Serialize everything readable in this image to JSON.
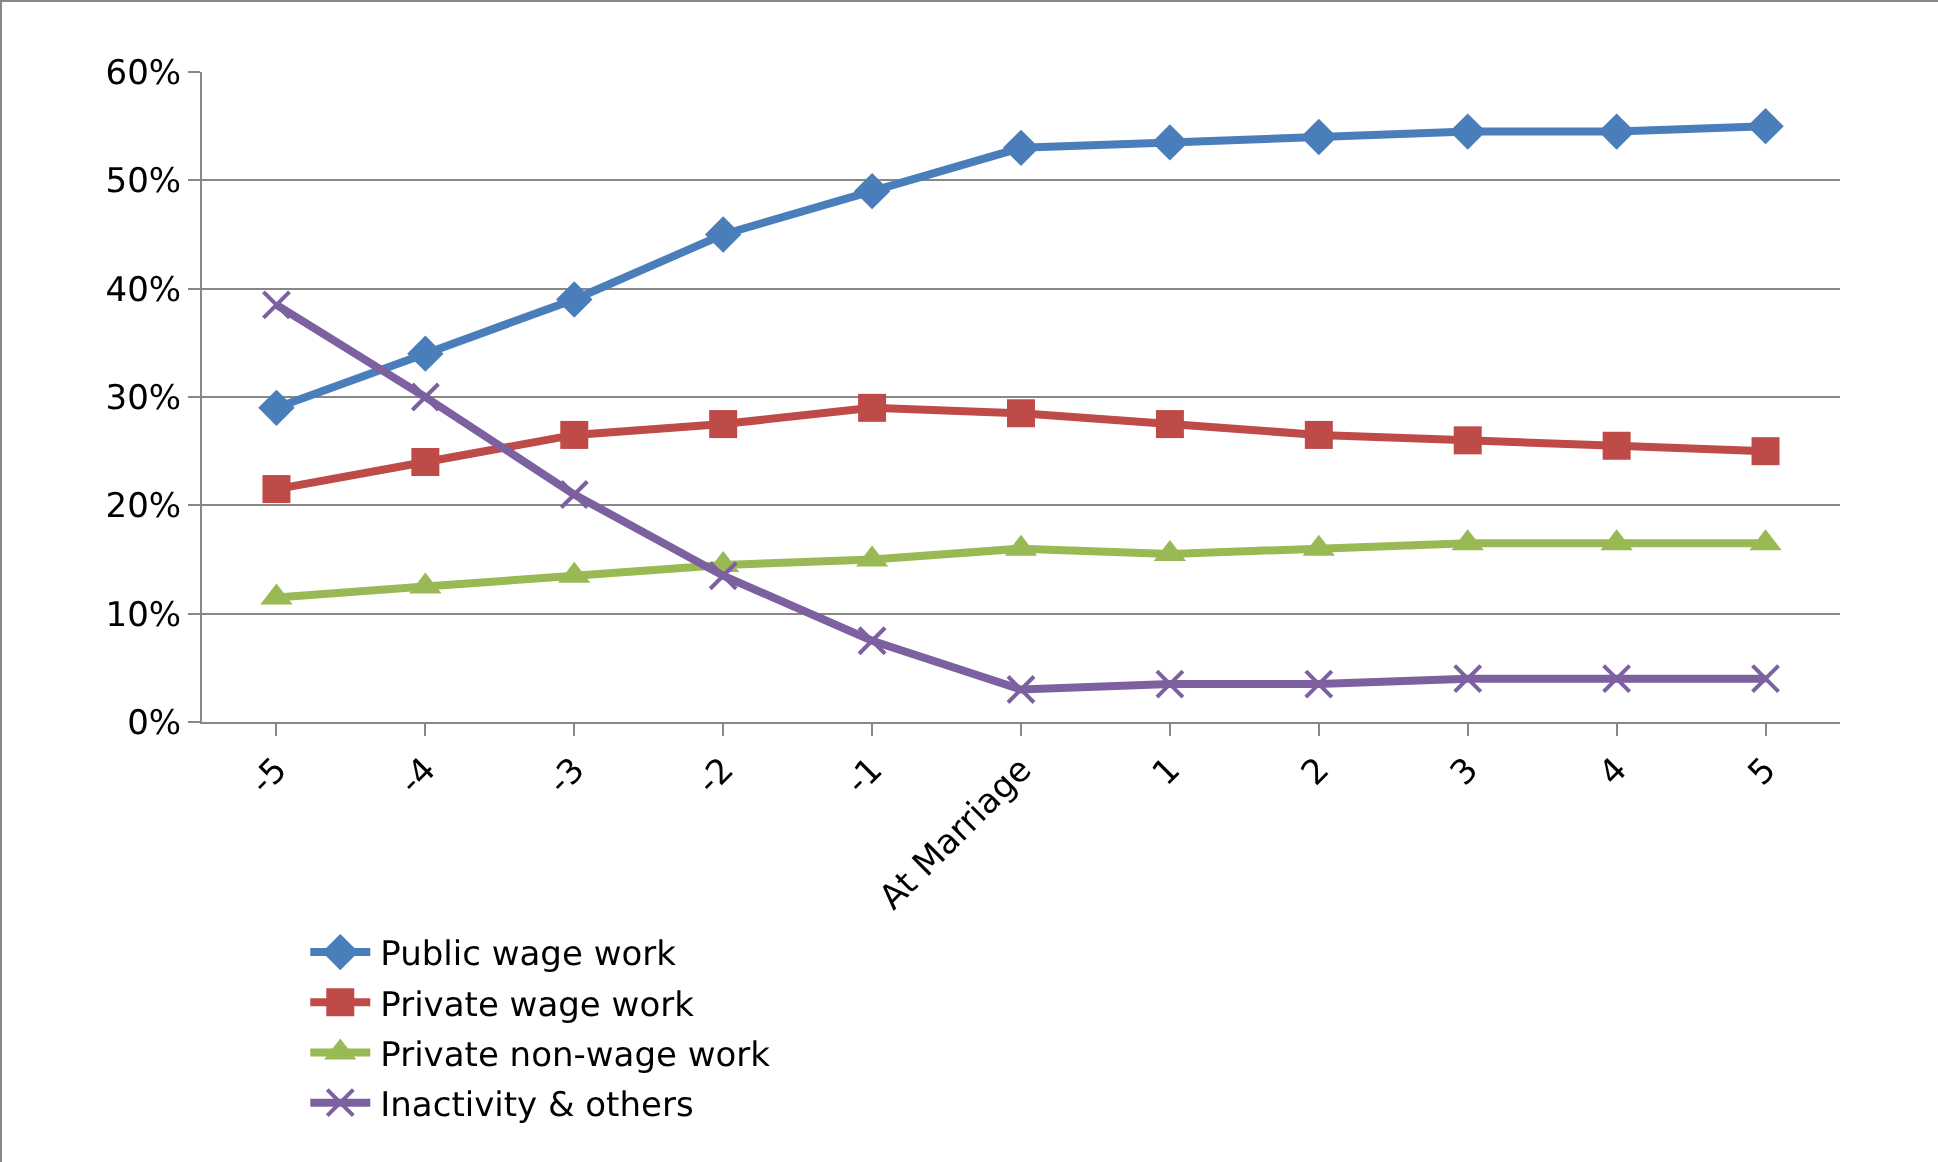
{
  "chart_data": {
    "type": "line",
    "categories": [
      "-5",
      "-4",
      "-3",
      "-2",
      "-1",
      "At Marriage",
      "1",
      "2",
      "3",
      "4",
      "5"
    ],
    "ylim": [
      0,
      60
    ],
    "yticks": [
      {
        "value": 0,
        "label": "0%"
      },
      {
        "value": 10,
        "label": "10%"
      },
      {
        "value": 20,
        "label": "20%"
      },
      {
        "value": 30,
        "label": "30%"
      },
      {
        "value": 40,
        "label": "40%"
      },
      {
        "value": 50,
        "label": "50%"
      },
      {
        "value": 60,
        "label": "60%"
      }
    ],
    "grid": "y",
    "legend": "bottom",
    "line_style": "solid",
    "series": [
      {
        "name": "Public wage work",
        "color": "#4a7ebb",
        "marker": "diamond",
        "values": [
          29,
          34,
          39,
          45,
          49,
          53,
          53.5,
          54,
          54.5,
          54.5,
          55
        ]
      },
      {
        "name": "Private wage work",
        "color": "#be4b48",
        "marker": "square",
        "values": [
          21.5,
          24,
          26.5,
          27.5,
          29,
          28.5,
          27.5,
          26.5,
          26,
          25.5,
          25
        ]
      },
      {
        "name": "Private non-wage work",
        "color": "#98b954",
        "marker": "triangle",
        "values": [
          11.5,
          12.5,
          13.5,
          14.5,
          15,
          16,
          15.5,
          16,
          16.5,
          16.5,
          16.5
        ]
      },
      {
        "name": "Inactivity & others",
        "color": "#7d60a0",
        "marker": "cross",
        "values": [
          38.5,
          30,
          21,
          13.5,
          7.5,
          3,
          3.5,
          3.5,
          4,
          4,
          4
        ]
      }
    ]
  }
}
